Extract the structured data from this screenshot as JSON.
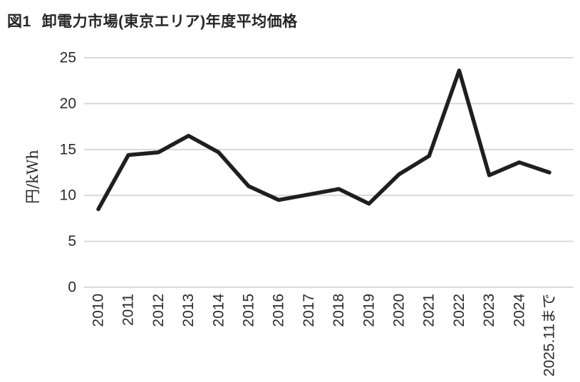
{
  "header": {
    "figure_label": "図1",
    "title": "卸電力市場(東京エリア)年度平均価格"
  },
  "chart_data": {
    "type": "line",
    "title": "図1 卸電力市場(東京エリア)年度平均価格",
    "xlabel": "",
    "ylabel": "円/kWh",
    "categories": [
      "2010",
      "2011",
      "2012",
      "2013",
      "2014",
      "2015",
      "2016",
      "2017",
      "2018",
      "2019",
      "2020",
      "2021",
      "2022",
      "2023",
      "2024",
      "2025.11まで"
    ],
    "values": [
      8.5,
      14.4,
      14.7,
      16.5,
      14.7,
      11.0,
      9.5,
      10.1,
      10.7,
      9.1,
      12.3,
      14.3,
      23.6,
      12.2,
      13.6,
      12.5
    ],
    "ylim": [
      0,
      25
    ],
    "yticks": [
      0,
      5,
      10,
      15,
      20,
      25
    ],
    "grid": "horizontal-only",
    "legend": "none",
    "colors": {
      "line": "#1f1f1f",
      "grid": "#d5d5d5",
      "text": "#2b2b2b"
    }
  }
}
